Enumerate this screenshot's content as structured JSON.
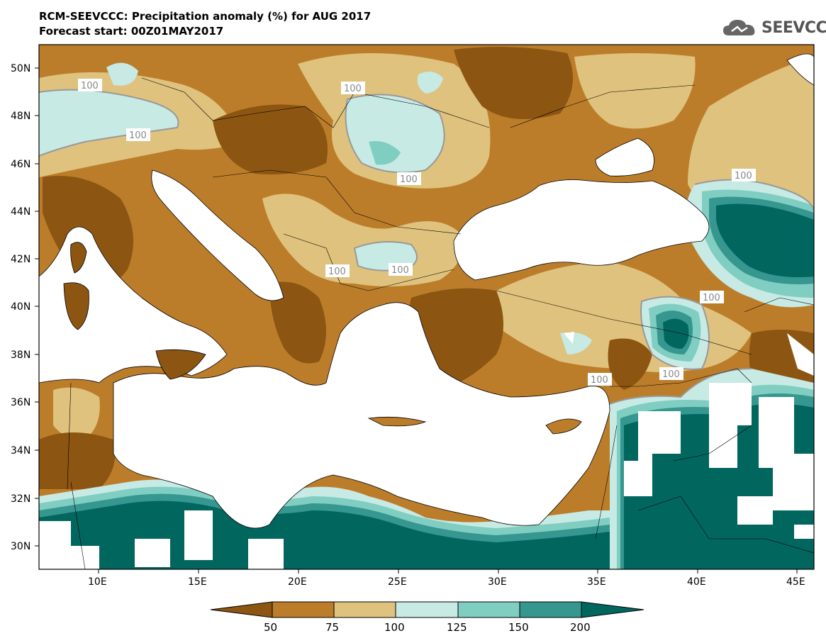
{
  "header": {
    "title_line1": "RCM-SEEVCCC: Precipitation anomaly (%) for AUG 2017",
    "title_line2": "Forecast start: 00Z01MAY2017"
  },
  "logo": {
    "text": "SEEVCCC",
    "icon": "cloud-icon"
  },
  "map": {
    "lat_labels": [
      "50N",
      "48N",
      "46N",
      "44N",
      "42N",
      "40N",
      "38N",
      "36N",
      "34N",
      "32N",
      "30N"
    ],
    "lon_labels": [
      "10E",
      "15E",
      "20E",
      "25E",
      "30E",
      "35E",
      "40E",
      "45E"
    ],
    "contour_label": "100",
    "contour_labels": [
      "100",
      "100",
      "100",
      "100",
      "100",
      "100",
      "100",
      "100",
      "100",
      "100"
    ]
  },
  "colorbar": {
    "ticks": [
      "50",
      "75",
      "100",
      "125",
      "150",
      "200"
    ],
    "colors": {
      "below50": "#8c5512",
      "50_75": "#bc7d2b",
      "75_100": "#dfc27d",
      "100_125": "#c7eae5",
      "125_150": "#80cdc1",
      "150_200": "#35978f",
      "above200": "#01665e"
    }
  },
  "colors": {
    "sea": "#ffffff",
    "coast": "#000000",
    "contour": "#999999"
  }
}
